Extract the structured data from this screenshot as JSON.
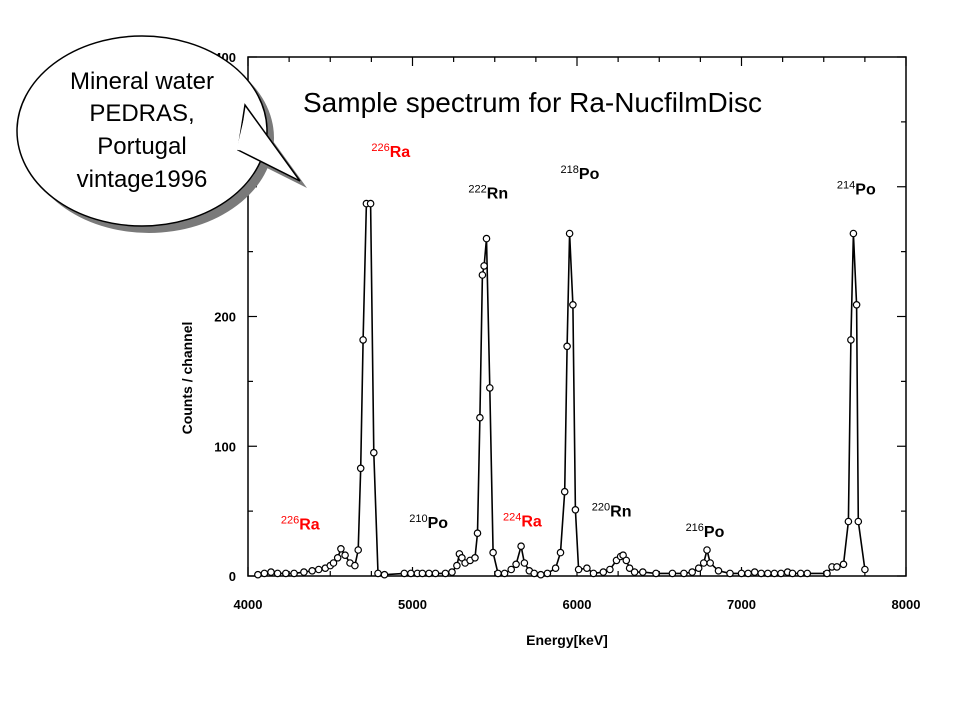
{
  "chart_data": {
    "type": "scatter",
    "title": "Sample spectrum for Ra-NucfilmDisc",
    "xlabel": "Energy[keV]",
    "ylabel": "Counts / channel",
    "xlim": [
      4000,
      8000
    ],
    "ylim": [
      0,
      400
    ],
    "x_ticks": [
      4000,
      5000,
      6000,
      7000,
      8000
    ],
    "y_ticks": [
      0,
      100,
      200,
      400
    ],
    "y_tick_labels": [
      "0",
      "100",
      "200",
      "400"
    ],
    "grid": false,
    "series": [
      {
        "line_color": "#000000",
        "marker": "open-circle",
        "points": [
          [
            4060,
            1
          ],
          [
            4100,
            2
          ],
          [
            4140,
            3
          ],
          [
            4180,
            2
          ],
          [
            4230,
            2
          ],
          [
            4280,
            2
          ],
          [
            4340,
            3
          ],
          [
            4390,
            4
          ],
          [
            4430,
            5
          ],
          [
            4470,
            6
          ],
          [
            4500,
            8
          ],
          [
            4520,
            10
          ],
          [
            4545,
            14
          ],
          [
            4565,
            21
          ],
          [
            4590,
            16
          ],
          [
            4620,
            10
          ],
          [
            4650,
            8
          ],
          [
            4670,
            20
          ],
          [
            4685,
            83
          ],
          [
            4700,
            182
          ],
          [
            4720,
            287
          ],
          [
            4745,
            287
          ],
          [
            4765,
            95
          ],
          [
            4790,
            2
          ],
          [
            4830,
            1
          ],
          [
            4950,
            2
          ],
          [
            4990,
            2
          ],
          [
            5030,
            2
          ],
          [
            5060,
            2
          ],
          [
            5100,
            2
          ],
          [
            5140,
            2
          ],
          [
            5200,
            2
          ],
          [
            5240,
            3
          ],
          [
            5270,
            8
          ],
          [
            5285,
            17
          ],
          [
            5300,
            14
          ],
          [
            5320,
            10
          ],
          [
            5350,
            12
          ],
          [
            5380,
            14
          ],
          [
            5395,
            33
          ],
          [
            5410,
            122
          ],
          [
            5425,
            232
          ],
          [
            5435,
            239
          ],
          [
            5450,
            260
          ],
          [
            5470,
            145
          ],
          [
            5490,
            18
          ],
          [
            5520,
            2
          ],
          [
            5560,
            2
          ],
          [
            5600,
            5
          ],
          [
            5630,
            9
          ],
          [
            5660,
            23
          ],
          [
            5680,
            10
          ],
          [
            5710,
            4
          ],
          [
            5740,
            2
          ],
          [
            5780,
            1
          ],
          [
            5820,
            2
          ],
          [
            5870,
            6
          ],
          [
            5900,
            18
          ],
          [
            5925,
            65
          ],
          [
            5940,
            177
          ],
          [
            5955,
            264
          ],
          [
            5975,
            209
          ],
          [
            5990,
            51
          ],
          [
            6010,
            5
          ],
          [
            6060,
            6
          ],
          [
            6100,
            2
          ],
          [
            6160,
            3
          ],
          [
            6200,
            5
          ],
          [
            6240,
            12
          ],
          [
            6265,
            15
          ],
          [
            6280,
            16
          ],
          [
            6300,
            12
          ],
          [
            6320,
            6
          ],
          [
            6350,
            3
          ],
          [
            6400,
            3
          ],
          [
            6480,
            2
          ],
          [
            6580,
            2
          ],
          [
            6650,
            2
          ],
          [
            6700,
            3
          ],
          [
            6740,
            6
          ],
          [
            6770,
            10
          ],
          [
            6790,
            20
          ],
          [
            6810,
            10
          ],
          [
            6860,
            4
          ],
          [
            6930,
            2
          ],
          [
            7000,
            2
          ],
          [
            7040,
            2
          ],
          [
            7080,
            3
          ],
          [
            7120,
            2
          ],
          [
            7160,
            2
          ],
          [
            7200,
            2
          ],
          [
            7240,
            2
          ],
          [
            7280,
            3
          ],
          [
            7310,
            2
          ],
          [
            7360,
            2
          ],
          [
            7400,
            2
          ],
          [
            7520,
            2
          ],
          [
            7550,
            7
          ],
          [
            7580,
            7
          ],
          [
            7620,
            9
          ],
          [
            7650,
            42
          ],
          [
            7665,
            182
          ],
          [
            7680,
            264
          ],
          [
            7700,
            209
          ],
          [
            7710,
            42
          ],
          [
            7750,
            5
          ]
        ]
      }
    ],
    "annotations": [
      {
        "sup": "226",
        "text": "Ra",
        "color": "#ff0000",
        "x": 4750,
        "y": 323
      },
      {
        "sup": "222",
        "text": "Rn",
        "color": "#000000",
        "x": 5340,
        "y": 291
      },
      {
        "sup": "218",
        "text": "Po",
        "color": "#000000",
        "x": 5900,
        "y": 306
      },
      {
        "sup": "214",
        "text": "Po",
        "color": "#000000",
        "x": 7580,
        "y": 294
      },
      {
        "sup": "226",
        "text": "Ra",
        "color": "#ff0000",
        "x": 4200,
        "y": 36
      },
      {
        "sup": "210",
        "text": "Po",
        "color": "#000000",
        "x": 4980,
        "y": 37
      },
      {
        "sup": "224",
        "text": "Ra",
        "color": "#ff0000",
        "x": 5550,
        "y": 38
      },
      {
        "sup": "220",
        "text": "Rn",
        "color": "#000000",
        "x": 6090,
        "y": 46
      },
      {
        "sup": "216",
        "text": "Po",
        "color": "#000000",
        "x": 6660,
        "y": 30
      }
    ]
  },
  "callout": {
    "lines": [
      "Mineral water",
      "PEDRAS,",
      "Portugal",
      "vintage1996"
    ]
  }
}
